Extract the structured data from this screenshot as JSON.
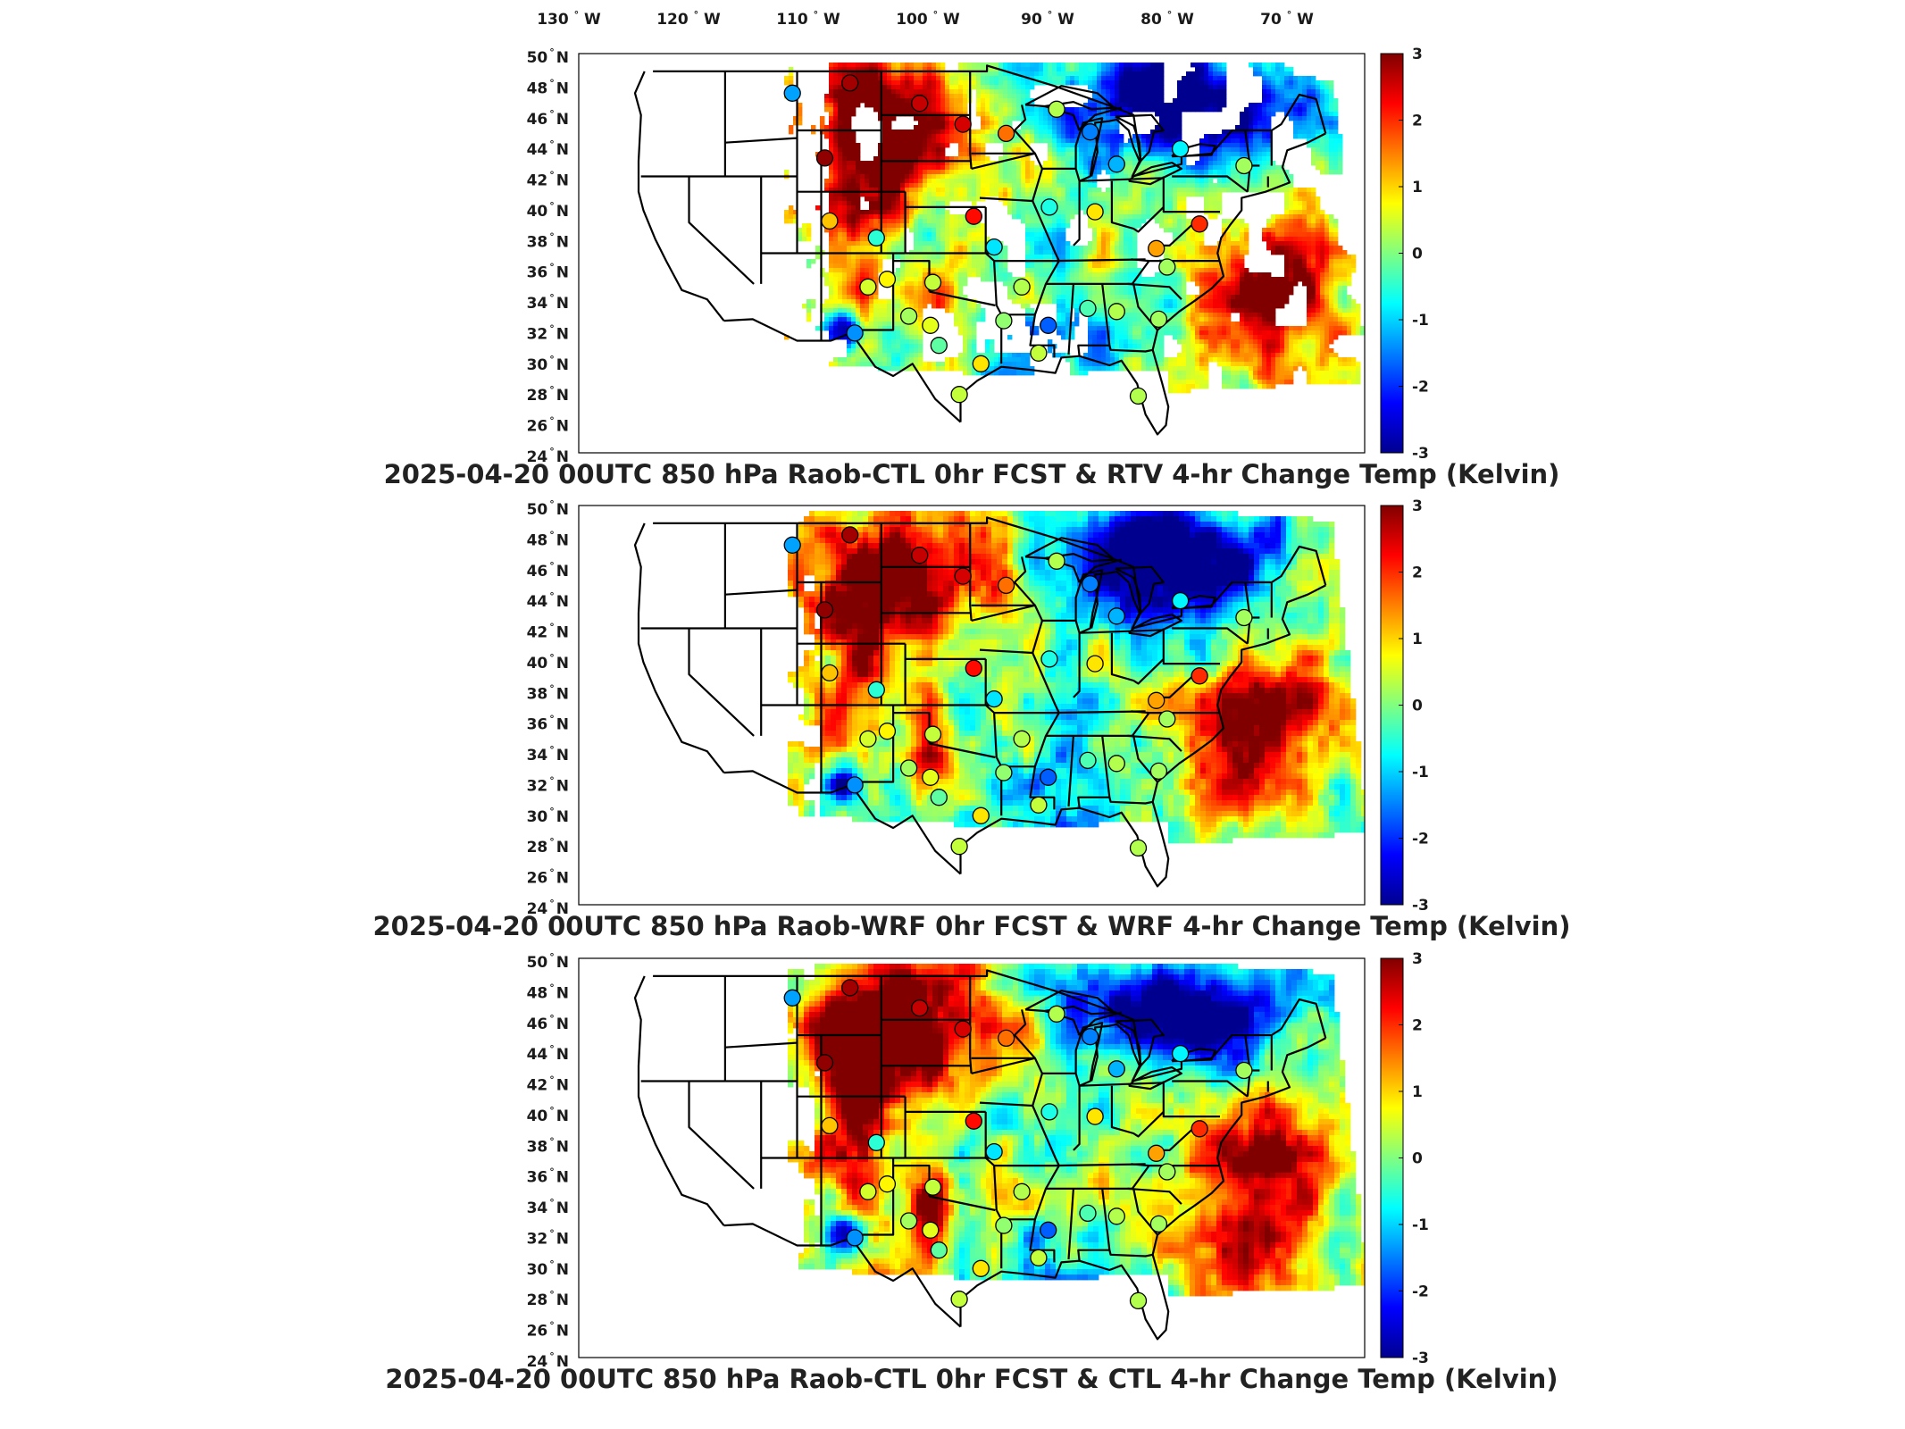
{
  "figure": {
    "lon_labels": [
      "130",
      "120",
      "110",
      "100",
      "90",
      "80",
      "70"
    ],
    "lon_suffix": "W",
    "lat_labels": [
      "50",
      "48",
      "46",
      "44",
      "42",
      "40",
      "38",
      "36",
      "34",
      "32",
      "30",
      "28",
      "26",
      "24"
    ],
    "lat_suffix": "N",
    "degree_symbol": "°",
    "colorbar": {
      "ticks": [
        "3",
        "2",
        "1",
        "0",
        "-1",
        "-2",
        "-3"
      ],
      "range": [
        -3,
        3
      ],
      "colormap": [
        "#00008f",
        "#0000ff",
        "#0080ff",
        "#00ffff",
        "#80ff80",
        "#ffff00",
        "#ff8000",
        "#ff0000",
        "#800000"
      ]
    },
    "basemap": {
      "ocean_land_color": "#ffffff",
      "border_color": "#000000"
    }
  },
  "panels": [
    {
      "id": "rtv",
      "title": "2025-04-20 00UTC 850 hPa Raob-CTL 0hr FCST & RTV 4-hr Change Temp (Kelvin)",
      "field": "satellite swath (patchy, gaps over clouds)"
    },
    {
      "id": "wrf",
      "title": "2025-04-20 00UTC 850 hPa Raob-WRF 0hr FCST & WRF 4-hr Change Temp (Kelvin)",
      "field": "model grid (smooth)"
    },
    {
      "id": "ctl",
      "title": "2025-04-20 00UTC 850 hPa Raob-CTL 0hr FCST & CTL 4-hr Change Temp (Kelvin)",
      "field": "model grid (smooth)"
    }
  ],
  "raob_points": [
    {
      "lon": -111.4,
      "lat": 47.5,
      "value": -1.3
    },
    {
      "lon": -106.6,
      "lat": 48.2,
      "value": 2.8
    },
    {
      "lon": -100.8,
      "lat": 46.8,
      "value": 2.6
    },
    {
      "lon": -97.2,
      "lat": 45.4,
      "value": 2.5
    },
    {
      "lon": -93.6,
      "lat": 44.8,
      "value": 1.6
    },
    {
      "lon": -89.4,
      "lat": 46.4,
      "value": 0.3
    },
    {
      "lon": -86.6,
      "lat": 44.9,
      "value": -1.5
    },
    {
      "lon": -84.4,
      "lat": 42.8,
      "value": -1.2
    },
    {
      "lon": -79.1,
      "lat": 43.8,
      "value": -0.8
    },
    {
      "lon": -73.8,
      "lat": 42.7,
      "value": 0.2
    },
    {
      "lon": -108.7,
      "lat": 43.2,
      "value": 2.9
    },
    {
      "lon": -108.3,
      "lat": 39.1,
      "value": 1.1
    },
    {
      "lon": -104.4,
      "lat": 38.0,
      "value": -0.5
    },
    {
      "lon": -96.3,
      "lat": 39.4,
      "value": 2.2
    },
    {
      "lon": -94.6,
      "lat": 37.4,
      "value": -0.9
    },
    {
      "lon": -90.0,
      "lat": 40.0,
      "value": -0.6
    },
    {
      "lon": -86.2,
      "lat": 39.7,
      "value": 0.9
    },
    {
      "lon": -81.1,
      "lat": 37.3,
      "value": 1.3
    },
    {
      "lon": -77.5,
      "lat": 38.9,
      "value": 2.0
    },
    {
      "lon": -80.2,
      "lat": 36.1,
      "value": 0.2
    },
    {
      "lon": -105.1,
      "lat": 34.8,
      "value": 0.5
    },
    {
      "lon": -103.5,
      "lat": 35.3,
      "value": 0.8
    },
    {
      "lon": -99.7,
      "lat": 35.1,
      "value": 0.4
    },
    {
      "lon": -92.3,
      "lat": 34.8,
      "value": 0.3
    },
    {
      "lon": -106.2,
      "lat": 31.8,
      "value": -1.4
    },
    {
      "lon": -101.7,
      "lat": 32.9,
      "value": 0.2
    },
    {
      "lon": -99.9,
      "lat": 32.3,
      "value": 0.6
    },
    {
      "lon": -93.8,
      "lat": 32.6,
      "value": 0.1
    },
    {
      "lon": -90.1,
      "lat": 32.3,
      "value": -1.7
    },
    {
      "lon": -86.8,
      "lat": 33.4,
      "value": -0.3
    },
    {
      "lon": -84.4,
      "lat": 33.2,
      "value": 0.3
    },
    {
      "lon": -80.9,
      "lat": 32.7,
      "value": 0.2
    },
    {
      "lon": -95.7,
      "lat": 29.8,
      "value": 0.9
    },
    {
      "lon": -90.9,
      "lat": 30.5,
      "value": 0.4
    },
    {
      "lon": -97.5,
      "lat": 27.8,
      "value": 0.4
    },
    {
      "lon": -82.6,
      "lat": 27.7,
      "value": 0.3
    },
    {
      "lon": -99.2,
      "lat": 31.0,
      "value": -0.2
    }
  ]
}
